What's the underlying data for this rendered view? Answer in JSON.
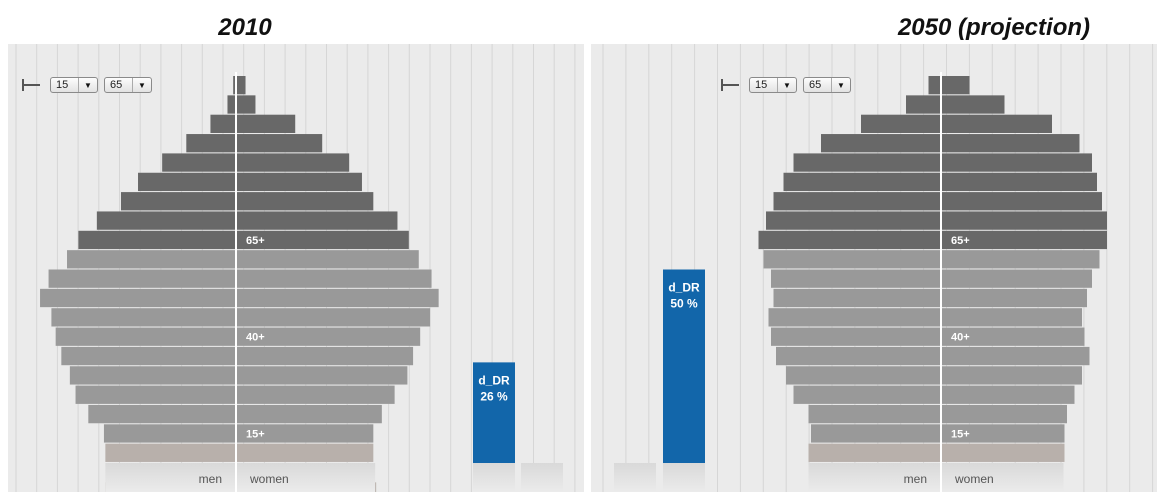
{
  "panels": [
    {
      "title": "2010",
      "controls": {
        "lower_age": "15",
        "upper_age": "65"
      },
      "gender_labels": {
        "men": "men",
        "women": "women"
      },
      "age_labels": [
        "65+",
        "40+",
        "15+"
      ],
      "dependency_ratio": {
        "label": "d_DR",
        "value_text": "26 %"
      }
    },
    {
      "title": "2050 (projection)",
      "controls": {
        "lower_age": "15",
        "upper_age": "65"
      },
      "gender_labels": {
        "men": "men",
        "women": "women"
      },
      "age_labels": [
        "65+",
        "40+",
        "15+"
      ],
      "dependency_ratio": {
        "label": "d_DR",
        "value_text": "50 %"
      }
    }
  ],
  "colors": {
    "old_age": "#686868",
    "working_age": "#999999",
    "young_age": "#b8b0ab",
    "ratio_bar": "#1266aa",
    "background": "#ebebeb"
  },
  "chart_data": [
    {
      "type": "bar",
      "title": "2010",
      "orientation": "horizontal population pyramid",
      "age_groups_top_to_bottom": 22,
      "series": [
        {
          "name": "men",
          "values": [
            0.2,
            0.6,
            1.8,
            3.5,
            5.2,
            6.9,
            8.1,
            9.8,
            11.1,
            11.9,
            13.2,
            13.8,
            13.0,
            12.7,
            12.3,
            11.7,
            11.3,
            10.4,
            9.3,
            9.2,
            9.0,
            9.2
          ]
        },
        {
          "name": "women",
          "values": [
            0.6,
            1.3,
            4.1,
            6.0,
            7.9,
            8.8,
            9.6,
            11.3,
            12.1,
            12.8,
            13.7,
            14.2,
            13.6,
            12.9,
            12.4,
            12.0,
            11.1,
            10.2,
            9.6,
            9.6,
            9.7,
            9.8
          ]
        }
      ],
      "age_labels": [
        "65+",
        "40+",
        "15+"
      ],
      "dependency_ratio": {
        "name": "d_DR",
        "value_percent": 26
      }
    },
    {
      "type": "bar",
      "title": "2050 (projection)",
      "orientation": "horizontal population pyramid",
      "age_groups_top_to_bottom": 22,
      "series": [
        {
          "name": "men",
          "values": [
            0.5,
            1.4,
            3.2,
            4.8,
            5.9,
            6.3,
            6.7,
            7.0,
            7.3,
            7.1,
            6.8,
            6.7,
            6.9,
            6.8,
            6.6,
            6.2,
            5.9,
            5.3,
            5.2,
            5.3,
            5.2,
            5.2
          ]
        },
        {
          "name": "women",
          "values": [
            1.1,
            2.5,
            4.4,
            5.5,
            6.0,
            6.2,
            6.4,
            6.6,
            6.6,
            6.3,
            6.0,
            5.8,
            5.6,
            5.7,
            5.9,
            5.6,
            5.3,
            5.0,
            4.9,
            4.9,
            4.8,
            4.8
          ]
        }
      ],
      "age_labels": [
        "65+",
        "40+",
        "15+"
      ],
      "dependency_ratio": {
        "name": "d_DR",
        "value_percent": 50
      }
    }
  ]
}
